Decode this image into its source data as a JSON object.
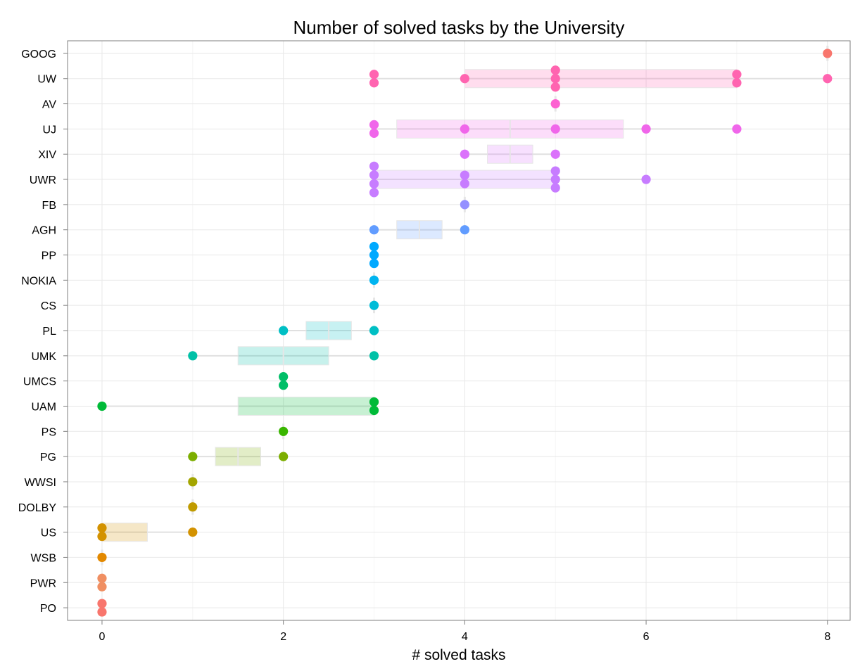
{
  "chart_data": {
    "type": "scatter",
    "title": "Number of solved tasks by the University",
    "xlabel": "# solved tasks",
    "ylabel": "",
    "xlim": [
      -0.38,
      8.25
    ],
    "xticks": [
      0,
      2,
      4,
      6,
      8
    ],
    "grid": true,
    "legend": "none",
    "categories": [
      "GOOG",
      "UW",
      "AV",
      "UJ",
      "XIV",
      "UWR",
      "FB",
      "AGH",
      "PP",
      "NOKIA",
      "CS",
      "PL",
      "UMK",
      "UMCS",
      "UAM",
      "PS",
      "PG",
      "WWSI",
      "DOLBY",
      "US",
      "WSB",
      "PWR",
      "PO"
    ],
    "series": [
      {
        "category": "GOOG",
        "color": "#F8766D",
        "points": [
          8
        ],
        "box": {
          "q1": 8,
          "median": 8,
          "q3": 8,
          "min": 8,
          "max": 8
        }
      },
      {
        "category": "UW",
        "color": "#FF64B0",
        "points": [
          3,
          3,
          4,
          5,
          5,
          5,
          7,
          7,
          8
        ],
        "box": {
          "q1": 4,
          "median": 5,
          "q3": 7,
          "min": 3,
          "max": 8
        }
      },
      {
        "category": "AV",
        "color": "#FD61D1",
        "points": [
          5
        ],
        "box": {
          "q1": 5,
          "median": 5,
          "q3": 5,
          "min": 5,
          "max": 5
        }
      },
      {
        "category": "UJ",
        "color": "#F066EA",
        "points": [
          3,
          3,
          4,
          5,
          6,
          7
        ],
        "box": {
          "q1": 3.25,
          "median": 4.5,
          "q3": 5.75,
          "min": 3,
          "max": 7
        }
      },
      {
        "category": "XIV",
        "color": "#DB72FB",
        "points": [
          4,
          5
        ],
        "box": {
          "q1": 4.25,
          "median": 4.5,
          "q3": 4.75,
          "min": 4,
          "max": 5
        }
      },
      {
        "category": "UWR",
        "color": "#C77CFF",
        "points": [
          3,
          3,
          3,
          3,
          4,
          4,
          5,
          5,
          5,
          6
        ],
        "box": {
          "q1": 3,
          "median": 4,
          "q3": 5,
          "min": 3,
          "max": 6
        }
      },
      {
        "category": "FB",
        "color": "#9590FF",
        "points": [
          4
        ],
        "box": {
          "q1": 4,
          "median": 4,
          "q3": 4,
          "min": 4,
          "max": 4
        }
      },
      {
        "category": "AGH",
        "color": "#619CFF",
        "points": [
          3,
          4
        ],
        "box": {
          "q1": 3.25,
          "median": 3.5,
          "q3": 3.75,
          "min": 3,
          "max": 4
        }
      },
      {
        "category": "PP",
        "color": "#00A9FF",
        "points": [
          3,
          3,
          3
        ],
        "box": {
          "q1": 3,
          "median": 3,
          "q3": 3,
          "min": 3,
          "max": 3
        }
      },
      {
        "category": "NOKIA",
        "color": "#00B4F0",
        "points": [
          3
        ],
        "box": {
          "q1": 3,
          "median": 3,
          "q3": 3,
          "min": 3,
          "max": 3
        }
      },
      {
        "category": "CS",
        "color": "#00BCD8",
        "points": [
          3
        ],
        "box": {
          "q1": 3,
          "median": 3,
          "q3": 3,
          "min": 3,
          "max": 3
        }
      },
      {
        "category": "PL",
        "color": "#00BFC4",
        "points": [
          2,
          3
        ],
        "box": {
          "q1": 2.25,
          "median": 2.5,
          "q3": 2.75,
          "min": 2,
          "max": 3
        }
      },
      {
        "category": "UMK",
        "color": "#00C1A7",
        "points": [
          1,
          3
        ],
        "box": {
          "q1": 1.5,
          "median": 2,
          "q3": 2.5,
          "min": 1,
          "max": 3
        }
      },
      {
        "category": "UMCS",
        "color": "#00BE67",
        "points": [
          2,
          2
        ],
        "box": {
          "q1": 2,
          "median": 2,
          "q3": 2,
          "min": 2,
          "max": 2
        }
      },
      {
        "category": "UAM",
        "color": "#00BA38",
        "points": [
          0,
          3,
          3
        ],
        "box": {
          "q1": 1.5,
          "median": 3,
          "q3": 3,
          "min": 0,
          "max": 3
        }
      },
      {
        "category": "PS",
        "color": "#39B600",
        "points": [
          2
        ],
        "box": {
          "q1": 2,
          "median": 2,
          "q3": 2,
          "min": 2,
          "max": 2
        }
      },
      {
        "category": "PG",
        "color": "#7CAE00",
        "points": [
          1,
          2
        ],
        "box": {
          "q1": 1.25,
          "median": 1.5,
          "q3": 1.75,
          "min": 1,
          "max": 2
        }
      },
      {
        "category": "WWSI",
        "color": "#A3A500",
        "points": [
          1
        ],
        "box": {
          "q1": 1,
          "median": 1,
          "q3": 1,
          "min": 1,
          "max": 1
        }
      },
      {
        "category": "DOLBY",
        "color": "#C09B00",
        "points": [
          1
        ],
        "box": {
          "q1": 1,
          "median": 1,
          "q3": 1,
          "min": 1,
          "max": 1
        }
      },
      {
        "category": "US",
        "color": "#D39200",
        "points": [
          0,
          0,
          1
        ],
        "box": {
          "q1": 0,
          "median": 0,
          "q3": 0.5,
          "min": 0,
          "max": 1
        }
      },
      {
        "category": "WSB",
        "color": "#E38900",
        "points": [
          0
        ],
        "box": {
          "q1": 0,
          "median": 0,
          "q3": 0,
          "min": 0,
          "max": 0
        }
      },
      {
        "category": "PWR",
        "color": "#F08F62",
        "points": [
          0,
          0
        ],
        "box": {
          "q1": 0,
          "median": 0,
          "q3": 0,
          "min": 0,
          "max": 0
        }
      },
      {
        "category": "PO",
        "color": "#F8766D",
        "points": [
          0,
          0
        ],
        "box": {
          "q1": 0,
          "median": 0,
          "q3": 0,
          "min": 0,
          "max": 0
        }
      }
    ]
  }
}
